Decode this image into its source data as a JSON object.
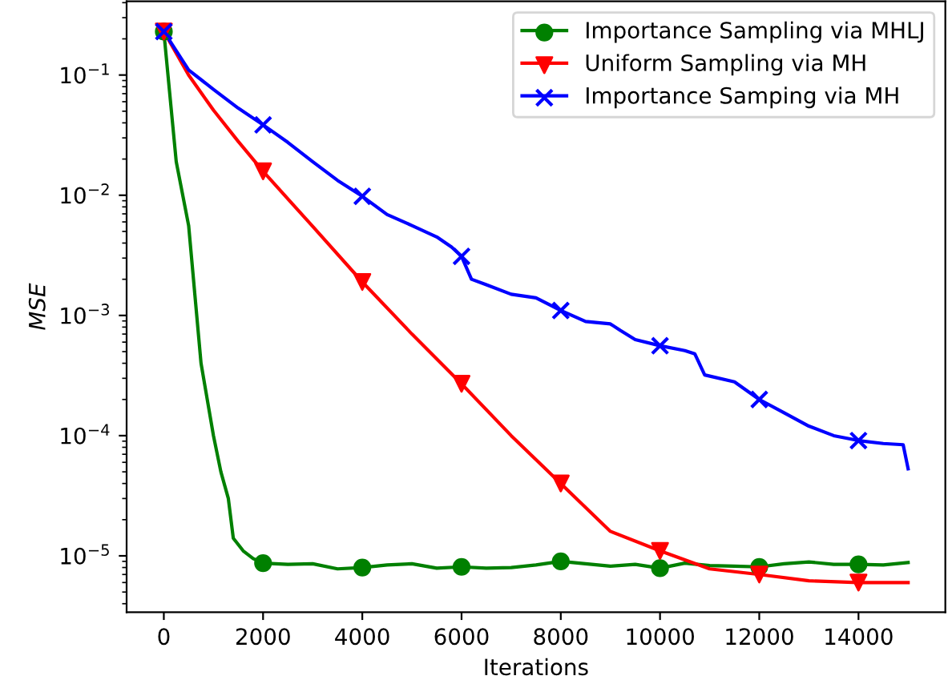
{
  "chart_data": {
    "type": "line",
    "xlabel": "Iterations",
    "ylabel": "MSE",
    "log": "y",
    "legend": "top right",
    "grid": false,
    "line_style": "solid",
    "xlim": [
      -750,
      15750
    ],
    "xticks": [
      0,
      2000,
      4000,
      6000,
      8000,
      10000,
      12000,
      14000
    ],
    "ylim": [
      3.4e-06,
      0.41
    ],
    "yticks": [
      {
        "value": 1e-05,
        "label": "10$^{−5}$"
      },
      {
        "value": 0.0001,
        "label": "10$^{−4}$"
      },
      {
        "value": 0.001,
        "label": "10$^{−3}$"
      },
      {
        "value": 0.01,
        "label": "10$^{−2}$"
      },
      {
        "value": 0.1,
        "label": "10$^{−1}$"
      }
    ],
    "series": [
      {
        "name": "Importance Sampling via MHLJ",
        "color": "#008000",
        "x": [
          0,
          250,
          500,
          750,
          1000,
          1150,
          1300,
          1400,
          1600,
          1800,
          2000,
          2500,
          3000,
          3500,
          4000,
          4500,
          5000,
          5500,
          6000,
          6500,
          7000,
          7500,
          8000,
          8500,
          9000,
          9500,
          10000,
          10500,
          11000,
          11500,
          12000,
          12500,
          13000,
          13500,
          14000,
          14500,
          15000
        ],
        "values": [
          0.23,
          0.019,
          0.0056,
          0.0004,
          0.0001,
          5e-05,
          3e-05,
          1.4e-05,
          1.1e-05,
          9.5e-06,
          8.7e-06,
          8.5e-06,
          8.6e-06,
          7.8e-06,
          8e-06,
          8.4e-06,
          8.6e-06,
          7.9e-06,
          8.1e-06,
          7.9e-06,
          8e-06,
          8.4e-06,
          9e-06,
          8.6e-06,
          8.2e-06,
          8.5e-06,
          7.9e-06,
          8.7e-06,
          8.3e-06,
          8.2e-06,
          8.1e-06,
          8.6e-06,
          8.9e-06,
          8.5e-06,
          8.5e-06,
          8.4e-06,
          8.8e-06
        ]
      },
      {
        "type": "scatter",
        "color": "#008000",
        "marker": "circle",
        "x": [
          0,
          2000,
          4000,
          6000,
          8000,
          10000,
          12000,
          14000
        ],
        "values": [
          0.23,
          8.7e-06,
          8e-06,
          8.1e-06,
          9e-06,
          7.9e-06,
          8.1e-06,
          8.5e-06
        ]
      },
      {
        "name": "Uniform Sampling via MH",
        "color": "#ff0000",
        "x": [
          0,
          500,
          1000,
          1500,
          2000,
          3000,
          4000,
          5000,
          6000,
          7000,
          8000,
          9000,
          10000,
          11000,
          12000,
          13000,
          14000,
          15000
        ],
        "values": [
          0.23,
          0.1,
          0.051,
          0.028,
          0.0158,
          0.0055,
          0.0019,
          0.0007,
          0.00027,
          0.0001,
          4e-05,
          1.6e-05,
          1.1e-05,
          7.8e-06,
          7e-06,
          6.2e-06,
          6e-06,
          6e-06
        ]
      },
      {
        "type": "scatter",
        "color": "#ff0000",
        "marker": "triangle",
        "x": [
          0,
          2000,
          4000,
          6000,
          8000,
          10000,
          12000,
          14000
        ],
        "values": [
          0.23,
          0.0158,
          0.0019,
          0.00027,
          4e-05,
          1.1e-05,
          7e-06,
          6e-06
        ]
      },
      {
        "name": "Importance Samping via MH",
        "color": "#0000ff",
        "x": [
          0,
          500,
          1000,
          1500,
          2000,
          2500,
          3000,
          3500,
          4000,
          4500,
          5000,
          5500,
          5800,
          6000,
          6200,
          6500,
          7000,
          7500,
          8000,
          8500,
          9000,
          9200,
          9500,
          10000,
          10500,
          10700,
          10900,
          11500,
          12000,
          12500,
          13000,
          13500,
          14000,
          14500,
          14900,
          15000
        ],
        "values": [
          0.23,
          0.11,
          0.076,
          0.053,
          0.0385,
          0.0275,
          0.019,
          0.0133,
          0.0098,
          0.0069,
          0.0056,
          0.0045,
          0.0037,
          0.0031,
          0.002,
          0.0018,
          0.0015,
          0.0014,
          0.0011,
          0.00089,
          0.00085,
          0.00075,
          0.00063,
          0.00056,
          0.00051,
          0.00048,
          0.00032,
          0.00028,
          0.0002,
          0.000155,
          0.00012,
          0.0001,
          9.1e-05,
          8.6e-05,
          8.4e-05,
          5.3e-05
        ]
      },
      {
        "type": "scatter",
        "color": "#0000ff",
        "marker": "cross",
        "x": [
          0,
          2000,
          4000,
          6000,
          8000,
          10000,
          12000,
          14000
        ],
        "values": [
          0.23,
          0.0385,
          0.0098,
          0.0031,
          0.0011,
          0.00056,
          0.0002,
          9.1e-05
        ]
      }
    ]
  }
}
